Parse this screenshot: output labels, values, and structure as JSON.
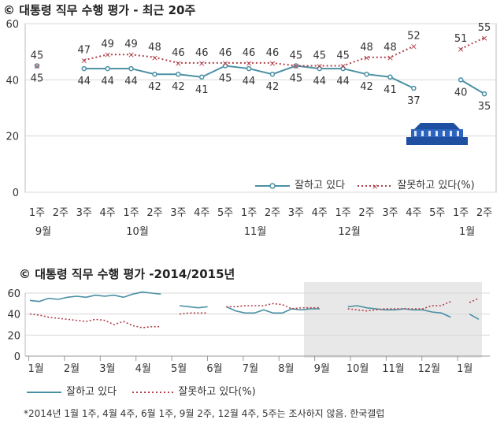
{
  "chart_data": [
    {
      "type": "line",
      "title": "© 대통령 직무 수행 평가 - 최근 20주",
      "week_labels": [
        "1주",
        "2주",
        "3주",
        "4주",
        "1주",
        "2주",
        "3주",
        "4주",
        "5주",
        "1주",
        "2주",
        "3주",
        "4주",
        "1주",
        "2주",
        "3주",
        "4주",
        "5주",
        "1주",
        "2주"
      ],
      "month_labels": [
        {
          "label": "9월",
          "index": 0
        },
        {
          "label": "10월",
          "index": 4
        },
        {
          "label": "11월",
          "index": 9
        },
        {
          "label": "12월",
          "index": 13
        },
        {
          "label": "1월",
          "index": 18
        }
      ],
      "ylim": [
        0,
        60
      ],
      "yticks": [
        0,
        20,
        40,
        60
      ],
      "grid": true,
      "legend": "bottom-right",
      "series": [
        {
          "name": "잘하고 있다",
          "color": "#4a90a4",
          "style": "solid",
          "values": [
            45,
            null,
            44,
            44,
            44,
            42,
            42,
            41,
            45,
            44,
            42,
            45,
            44,
            44,
            42,
            41,
            37,
            null,
            40,
            35
          ],
          "display_values": [
            45,
            null,
            44,
            44,
            44,
            42,
            42,
            41,
            45,
            44,
            42,
            45,
            44,
            44,
            42,
            41,
            37,
            null,
            40,
            35
          ]
        },
        {
          "name": "잘못하고 있다(%)",
          "color": "#b0404a",
          "style": "dotted",
          "values": [
            45,
            null,
            47,
            49,
            49,
            48,
            46,
            46,
            46,
            46,
            46,
            45,
            45,
            45,
            48,
            48,
            52,
            null,
            51,
            55
          ],
          "display_values": [
            45,
            null,
            47,
            49,
            49,
            48,
            46,
            46,
            46,
            46,
            46,
            45,
            45,
            45,
            48,
            48,
            52,
            null,
            51,
            55
          ]
        }
      ]
    },
    {
      "type": "line",
      "title": "© 대통령 직무 수행 평가 -2014/2015년",
      "month_labels": [
        "1월",
        "2월",
        "3월",
        "4월",
        "5월",
        "6월",
        "7월",
        "8월",
        "9월",
        "10월",
        "11월",
        "12월",
        "1월"
      ],
      "ylim": [
        0,
        60
      ],
      "yticks": [
        0,
        20,
        40,
        60
      ],
      "grid": true,
      "legend": "bottom-left",
      "series": [
        {
          "name": "잘하고 있다",
          "color": "#4a90a4",
          "style": "solid",
          "values": [
            53,
            52,
            55,
            54,
            56,
            57,
            56,
            58,
            57,
            58,
            56,
            59,
            61,
            60,
            59,
            null,
            48,
            47,
            46,
            47,
            null,
            47,
            43,
            41,
            41,
            44,
            41,
            41,
            45,
            44,
            45,
            45,
            null,
            null,
            47,
            48,
            46,
            45,
            44,
            44,
            45,
            44,
            44,
            42,
            41,
            37,
            null,
            40,
            35
          ]
        },
        {
          "name": "잘못하고 있다(%)",
          "color": "#b0404a",
          "style": "dotted",
          "values": [
            40,
            39,
            37,
            36,
            35,
            34,
            33,
            35,
            34,
            30,
            33,
            29,
            27,
            28,
            28,
            null,
            40,
            41,
            41,
            41,
            null,
            47,
            47,
            48,
            48,
            48,
            50,
            49,
            45,
            46,
            46,
            46,
            null,
            null,
            45,
            44,
            43,
            44,
            45,
            45,
            45,
            45,
            45,
            48,
            48,
            52,
            null,
            51,
            55
          ]
        }
      ],
      "highlight_span": {
        "from_month": "9월",
        "to_month": "1월"
      }
    }
  ],
  "legend_main": {
    "s1": "잘하고 있다",
    "s2": "잘못하고 있다(%)"
  },
  "legend_small": {
    "s1": "잘하고 있다",
    "s2": "잘못하고 있다(%)"
  },
  "footnote": "*2014년 1월 1주, 4월 4주, 6월 1주, 9월 2주, 12월 4주, 5주는 조사하지 않음. 한국갤럽",
  "colors": {
    "approve": "#4a90a4",
    "disapprove": "#b0404a",
    "grid": "#d8d8d8",
    "shade": "#e8e8e8"
  }
}
